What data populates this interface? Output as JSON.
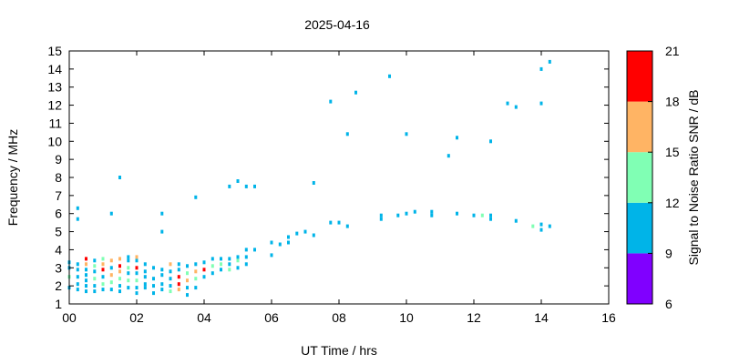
{
  "chart_data": {
    "type": "scatter",
    "title": "2025-04-16",
    "xlabel": "UT Time / hrs",
    "ylabel": "Frequency / MHz",
    "xlim": [
      0,
      16
    ],
    "ylim": [
      1,
      15
    ],
    "x_ticks": [
      "00",
      "02",
      "04",
      "06",
      "08",
      "10",
      "12",
      "14",
      "16"
    ],
    "y_ticks": [
      "1",
      "2",
      "3",
      "4",
      "5",
      "6",
      "7",
      "8",
      "9",
      "10",
      "11",
      "12",
      "13",
      "14",
      "15"
    ],
    "grid": false,
    "colorbar": {
      "label": "Signal to Noise Ratio SNR / dB",
      "range": [
        6,
        21
      ],
      "ticks": [
        "6",
        "9",
        "12",
        "15",
        "18",
        "21"
      ],
      "bands": [
        {
          "from": 6,
          "to": 9,
          "color": "#8000ff"
        },
        {
          "from": 9,
          "to": 12,
          "color": "#00b4e8"
        },
        {
          "from": 12,
          "to": 15,
          "color": "#80ffb4"
        },
        {
          "from": 15,
          "to": 18,
          "color": "#ffb464"
        },
        {
          "from": 18,
          "to": 21,
          "color": "#ff0000"
        }
      ]
    },
    "points": [
      {
        "x": 0.0,
        "y": 1.9,
        "snr": 10
      },
      {
        "x": 0.0,
        "y": 2.5,
        "snr": 13
      },
      {
        "x": 0.0,
        "y": 3.0,
        "snr": 10
      },
      {
        "x": 0.0,
        "y": 3.3,
        "snr": 10
      },
      {
        "x": 0.25,
        "y": 1.8,
        "snr": 10
      },
      {
        "x": 0.25,
        "y": 2.1,
        "snr": 10
      },
      {
        "x": 0.25,
        "y": 2.5,
        "snr": 10
      },
      {
        "x": 0.25,
        "y": 2.9,
        "snr": 10
      },
      {
        "x": 0.25,
        "y": 3.2,
        "snr": 10
      },
      {
        "x": 0.25,
        "y": 5.7,
        "snr": 10
      },
      {
        "x": 0.25,
        "y": 6.3,
        "snr": 10
      },
      {
        "x": 0.5,
        "y": 1.7,
        "snr": 10
      },
      {
        "x": 0.5,
        "y": 2.0,
        "snr": 10
      },
      {
        "x": 0.5,
        "y": 2.3,
        "snr": 10
      },
      {
        "x": 0.5,
        "y": 2.6,
        "snr": 10
      },
      {
        "x": 0.5,
        "y": 2.9,
        "snr": 10
      },
      {
        "x": 0.5,
        "y": 3.2,
        "snr": 16
      },
      {
        "x": 0.5,
        "y": 3.5,
        "snr": 19
      },
      {
        "x": 0.75,
        "y": 1.7,
        "snr": 10
      },
      {
        "x": 0.75,
        "y": 2.0,
        "snr": 10
      },
      {
        "x": 0.75,
        "y": 2.4,
        "snr": 13
      },
      {
        "x": 0.75,
        "y": 2.8,
        "snr": 10
      },
      {
        "x": 0.75,
        "y": 3.1,
        "snr": 13
      },
      {
        "x": 0.75,
        "y": 3.4,
        "snr": 10
      },
      {
        "x": 1.0,
        "y": 1.8,
        "snr": 10
      },
      {
        "x": 1.0,
        "y": 2.1,
        "snr": 13
      },
      {
        "x": 1.0,
        "y": 2.5,
        "snr": 10
      },
      {
        "x": 1.0,
        "y": 2.9,
        "snr": 19
      },
      {
        "x": 1.0,
        "y": 3.2,
        "snr": 16
      },
      {
        "x": 1.0,
        "y": 3.5,
        "snr": 13
      },
      {
        "x": 1.25,
        "y": 1.8,
        "snr": 10
      },
      {
        "x": 1.25,
        "y": 2.2,
        "snr": 13
      },
      {
        "x": 1.25,
        "y": 2.6,
        "snr": 16
      },
      {
        "x": 1.25,
        "y": 3.0,
        "snr": 10
      },
      {
        "x": 1.25,
        "y": 3.4,
        "snr": 16
      },
      {
        "x": 1.25,
        "y": 6.0,
        "snr": 10
      },
      {
        "x": 1.5,
        "y": 1.7,
        "snr": 10
      },
      {
        "x": 1.5,
        "y": 2.0,
        "snr": 10
      },
      {
        "x": 1.5,
        "y": 2.4,
        "snr": 13
      },
      {
        "x": 1.5,
        "y": 2.8,
        "snr": 16
      },
      {
        "x": 1.5,
        "y": 3.1,
        "snr": 19
      },
      {
        "x": 1.5,
        "y": 3.5,
        "snr": 16
      },
      {
        "x": 1.5,
        "y": 8.0,
        "snr": 10
      },
      {
        "x": 1.75,
        "y": 1.9,
        "snr": 10
      },
      {
        "x": 1.75,
        "y": 2.3,
        "snr": 13
      },
      {
        "x": 1.75,
        "y": 2.7,
        "snr": 10
      },
      {
        "x": 1.75,
        "y": 3.0,
        "snr": 13
      },
      {
        "x": 1.75,
        "y": 3.4,
        "snr": 10
      },
      {
        "x": 1.75,
        "y": 3.6,
        "snr": 10
      },
      {
        "x": 2.0,
        "y": 1.6,
        "snr": 10
      },
      {
        "x": 2.0,
        "y": 1.9,
        "snr": 10
      },
      {
        "x": 2.0,
        "y": 2.3,
        "snr": 13
      },
      {
        "x": 2.0,
        "y": 2.7,
        "snr": 10
      },
      {
        "x": 2.0,
        "y": 3.0,
        "snr": 19
      },
      {
        "x": 2.0,
        "y": 3.4,
        "snr": 10
      },
      {
        "x": 2.0,
        "y": 3.6,
        "snr": 16
      },
      {
        "x": 2.25,
        "y": 1.9,
        "snr": 10
      },
      {
        "x": 2.25,
        "y": 2.1,
        "snr": 10
      },
      {
        "x": 2.25,
        "y": 2.5,
        "snr": 10
      },
      {
        "x": 2.25,
        "y": 2.8,
        "snr": 10
      },
      {
        "x": 2.25,
        "y": 3.2,
        "snr": 10
      },
      {
        "x": 2.5,
        "y": 1.6,
        "snr": 10
      },
      {
        "x": 2.5,
        "y": 2.0,
        "snr": 10
      },
      {
        "x": 2.5,
        "y": 2.4,
        "snr": 10
      },
      {
        "x": 2.5,
        "y": 3.0,
        "snr": 10
      },
      {
        "x": 2.75,
        "y": 1.8,
        "snr": 10
      },
      {
        "x": 2.75,
        "y": 2.1,
        "snr": 10
      },
      {
        "x": 2.75,
        "y": 2.6,
        "snr": 10
      },
      {
        "x": 2.75,
        "y": 2.9,
        "snr": 10
      },
      {
        "x": 2.75,
        "y": 5.0,
        "snr": 10
      },
      {
        "x": 2.75,
        "y": 6.0,
        "snr": 10
      },
      {
        "x": 3.0,
        "y": 1.7,
        "snr": 13
      },
      {
        "x": 3.0,
        "y": 2.0,
        "snr": 10
      },
      {
        "x": 3.0,
        "y": 2.4,
        "snr": 10
      },
      {
        "x": 3.0,
        "y": 2.8,
        "snr": 10
      },
      {
        "x": 3.0,
        "y": 3.2,
        "snr": 16
      },
      {
        "x": 3.25,
        "y": 1.8,
        "snr": 16
      },
      {
        "x": 3.25,
        "y": 2.1,
        "snr": 19
      },
      {
        "x": 3.25,
        "y": 2.5,
        "snr": 19
      },
      {
        "x": 3.25,
        "y": 2.9,
        "snr": 10
      },
      {
        "x": 3.25,
        "y": 3.2,
        "snr": 10
      },
      {
        "x": 3.5,
        "y": 1.5,
        "snr": 10
      },
      {
        "x": 3.5,
        "y": 1.9,
        "snr": 10
      },
      {
        "x": 3.5,
        "y": 2.3,
        "snr": 16
      },
      {
        "x": 3.5,
        "y": 2.7,
        "snr": 13
      },
      {
        "x": 3.5,
        "y": 3.1,
        "snr": 10
      },
      {
        "x": 3.75,
        "y": 1.9,
        "snr": 10
      },
      {
        "x": 3.75,
        "y": 2.4,
        "snr": 13
      },
      {
        "x": 3.75,
        "y": 2.8,
        "snr": 16
      },
      {
        "x": 3.75,
        "y": 3.2,
        "snr": 10
      },
      {
        "x": 3.75,
        "y": 6.9,
        "snr": 10
      },
      {
        "x": 4.0,
        "y": 2.5,
        "snr": 10
      },
      {
        "x": 4.0,
        "y": 2.9,
        "snr": 19
      },
      {
        "x": 4.0,
        "y": 3.3,
        "snr": 10
      },
      {
        "x": 4.25,
        "y": 2.7,
        "snr": 10
      },
      {
        "x": 4.25,
        "y": 3.1,
        "snr": 13
      },
      {
        "x": 4.25,
        "y": 3.5,
        "snr": 10
      },
      {
        "x": 4.5,
        "y": 2.9,
        "snr": 10
      },
      {
        "x": 4.5,
        "y": 3.2,
        "snr": 13
      },
      {
        "x": 4.5,
        "y": 3.5,
        "snr": 10
      },
      {
        "x": 4.75,
        "y": 2.9,
        "snr": 13
      },
      {
        "x": 4.75,
        "y": 3.2,
        "snr": 10
      },
      {
        "x": 4.75,
        "y": 3.5,
        "snr": 10
      },
      {
        "x": 4.75,
        "y": 7.5,
        "snr": 10
      },
      {
        "x": 5.0,
        "y": 3.0,
        "snr": 10
      },
      {
        "x": 5.0,
        "y": 3.4,
        "snr": 13
      },
      {
        "x": 5.0,
        "y": 3.6,
        "snr": 10
      },
      {
        "x": 5.0,
        "y": 7.8,
        "snr": 10
      },
      {
        "x": 5.25,
        "y": 3.2,
        "snr": 10
      },
      {
        "x": 5.25,
        "y": 3.6,
        "snr": 10
      },
      {
        "x": 5.25,
        "y": 4.0,
        "snr": 10
      },
      {
        "x": 5.25,
        "y": 7.5,
        "snr": 10
      },
      {
        "x": 5.5,
        "y": 4.0,
        "snr": 10
      },
      {
        "x": 5.5,
        "y": 7.5,
        "snr": 10
      },
      {
        "x": 6.0,
        "y": 3.7,
        "snr": 10
      },
      {
        "x": 6.0,
        "y": 4.4,
        "snr": 10
      },
      {
        "x": 6.25,
        "y": 4.3,
        "snr": 10
      },
      {
        "x": 6.5,
        "y": 4.4,
        "snr": 10
      },
      {
        "x": 6.5,
        "y": 4.7,
        "snr": 10
      },
      {
        "x": 6.75,
        "y": 4.9,
        "snr": 10
      },
      {
        "x": 7.0,
        "y": 5.0,
        "snr": 10
      },
      {
        "x": 7.25,
        "y": 4.8,
        "snr": 10
      },
      {
        "x": 7.25,
        "y": 7.7,
        "snr": 10
      },
      {
        "x": 7.75,
        "y": 5.5,
        "snr": 10
      },
      {
        "x": 7.75,
        "y": 12.2,
        "snr": 10
      },
      {
        "x": 8.0,
        "y": 5.5,
        "snr": 10
      },
      {
        "x": 8.25,
        "y": 5.3,
        "snr": 10
      },
      {
        "x": 8.25,
        "y": 10.4,
        "snr": 10
      },
      {
        "x": 8.5,
        "y": 12.7,
        "snr": 10
      },
      {
        "x": 9.25,
        "y": 5.7,
        "snr": 10
      },
      {
        "x": 9.25,
        "y": 5.9,
        "snr": 10
      },
      {
        "x": 9.5,
        "y": 13.6,
        "snr": 10
      },
      {
        "x": 9.75,
        "y": 5.9,
        "snr": 10
      },
      {
        "x": 10.0,
        "y": 6.0,
        "snr": 10
      },
      {
        "x": 10.0,
        "y": 10.4,
        "snr": 10
      },
      {
        "x": 10.25,
        "y": 6.1,
        "snr": 10
      },
      {
        "x": 10.75,
        "y": 5.9,
        "snr": 10
      },
      {
        "x": 10.75,
        "y": 6.1,
        "snr": 10
      },
      {
        "x": 11.25,
        "y": 9.2,
        "snr": 10
      },
      {
        "x": 11.5,
        "y": 6.0,
        "snr": 10
      },
      {
        "x": 11.5,
        "y": 10.2,
        "snr": 10
      },
      {
        "x": 12.0,
        "y": 5.9,
        "snr": 10
      },
      {
        "x": 12.25,
        "y": 5.9,
        "snr": 13
      },
      {
        "x": 12.5,
        "y": 5.7,
        "snr": 10
      },
      {
        "x": 12.5,
        "y": 5.9,
        "snr": 10
      },
      {
        "x": 12.5,
        "y": 10.0,
        "snr": 10
      },
      {
        "x": 13.0,
        "y": 12.1,
        "snr": 10
      },
      {
        "x": 13.25,
        "y": 5.6,
        "snr": 10
      },
      {
        "x": 13.25,
        "y": 11.9,
        "snr": 10
      },
      {
        "x": 13.75,
        "y": 5.3,
        "snr": 13
      },
      {
        "x": 14.0,
        "y": 5.1,
        "snr": 10
      },
      {
        "x": 14.0,
        "y": 5.4,
        "snr": 10
      },
      {
        "x": 14.0,
        "y": 12.1,
        "snr": 10
      },
      {
        "x": 14.0,
        "y": 14.0,
        "snr": 10
      },
      {
        "x": 14.25,
        "y": 5.3,
        "snr": 10
      },
      {
        "x": 14.25,
        "y": 14.4,
        "snr": 10
      }
    ]
  }
}
